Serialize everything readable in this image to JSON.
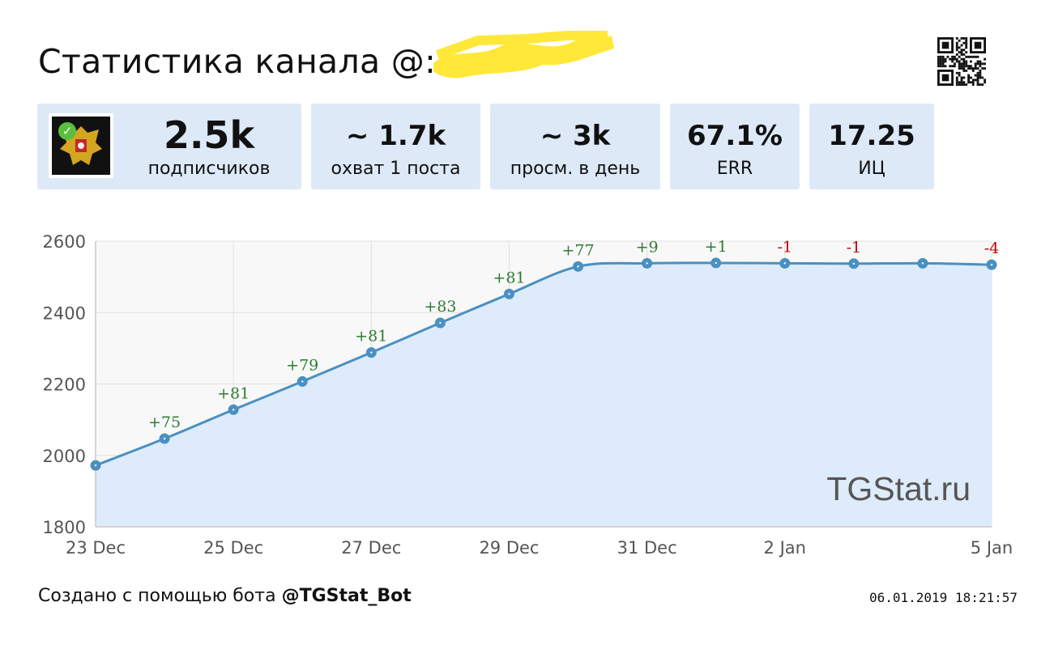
{
  "header": {
    "title": "Статистика канала @:"
  },
  "stats": [
    {
      "value": "2.5k",
      "label": "подписчиков"
    },
    {
      "value": "~ 1.7k",
      "label": "охват 1 поста"
    },
    {
      "value": "~ 3k",
      "label": "просм. в день"
    },
    {
      "value": "67.1%",
      "label": "ERR"
    },
    {
      "value": "17.25",
      "label": "ИЦ"
    }
  ],
  "footer": {
    "text": "Создано с помощью бота ",
    "bot": "@TGStat_Bot",
    "timestamp": "06.01.2019 18:21:57"
  },
  "watermark": "TGStat.ru",
  "colors": {
    "card_bg": "#dde9f7",
    "line": "#4a90c0",
    "area": "#deebfa",
    "positive": "#2e7d32",
    "negative": "#c00000"
  },
  "chart_data": {
    "type": "area",
    "x": [
      "23 Dec",
      "24 Dec",
      "25 Dec",
      "26 Dec",
      "27 Dec",
      "28 Dec",
      "29 Dec",
      "30 Dec",
      "31 Dec",
      "1 Jan",
      "2 Jan",
      "3 Jan",
      "4 Jan",
      "5 Jan"
    ],
    "values": [
      1972,
      2047,
      2128,
      2207,
      2288,
      2371,
      2452,
      2529,
      2538,
      2539,
      2538,
      2537,
      2538,
      2534
    ],
    "annotations": [
      "",
      "+75",
      "+81",
      "+79",
      "+81",
      "+83",
      "+81",
      "+77",
      "+9",
      "+1",
      "-1",
      "-1",
      "",
      "-4"
    ],
    "x_tick_labels": [
      "23 Dec",
      "25 Dec",
      "27 Dec",
      "29 Dec",
      "31 Dec",
      "2 Jan",
      "5 Jan"
    ],
    "x_tick_index": [
      0,
      2,
      4,
      6,
      8,
      10,
      13
    ],
    "y_ticks": [
      1800,
      2000,
      2200,
      2400,
      2600
    ],
    "ylim": [
      1800,
      2600
    ],
    "grid": true
  }
}
